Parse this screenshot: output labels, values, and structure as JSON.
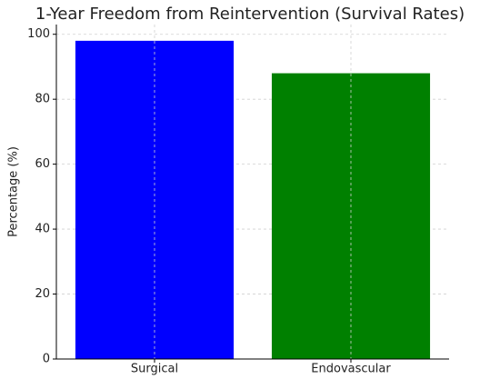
{
  "chart_data": {
    "type": "bar",
    "title": "1-Year Freedom from Reintervention (Survival Rates)",
    "y_label": "Percentage (%)",
    "categories": [
      "Surgical",
      "Endovascular"
    ],
    "values": [
      98,
      88
    ],
    "colors": [
      "#0000ff",
      "#008000"
    ],
    "ylim": [
      0,
      103
    ],
    "yticks": [
      0,
      20,
      40,
      60,
      80,
      100
    ],
    "grid": true
  }
}
